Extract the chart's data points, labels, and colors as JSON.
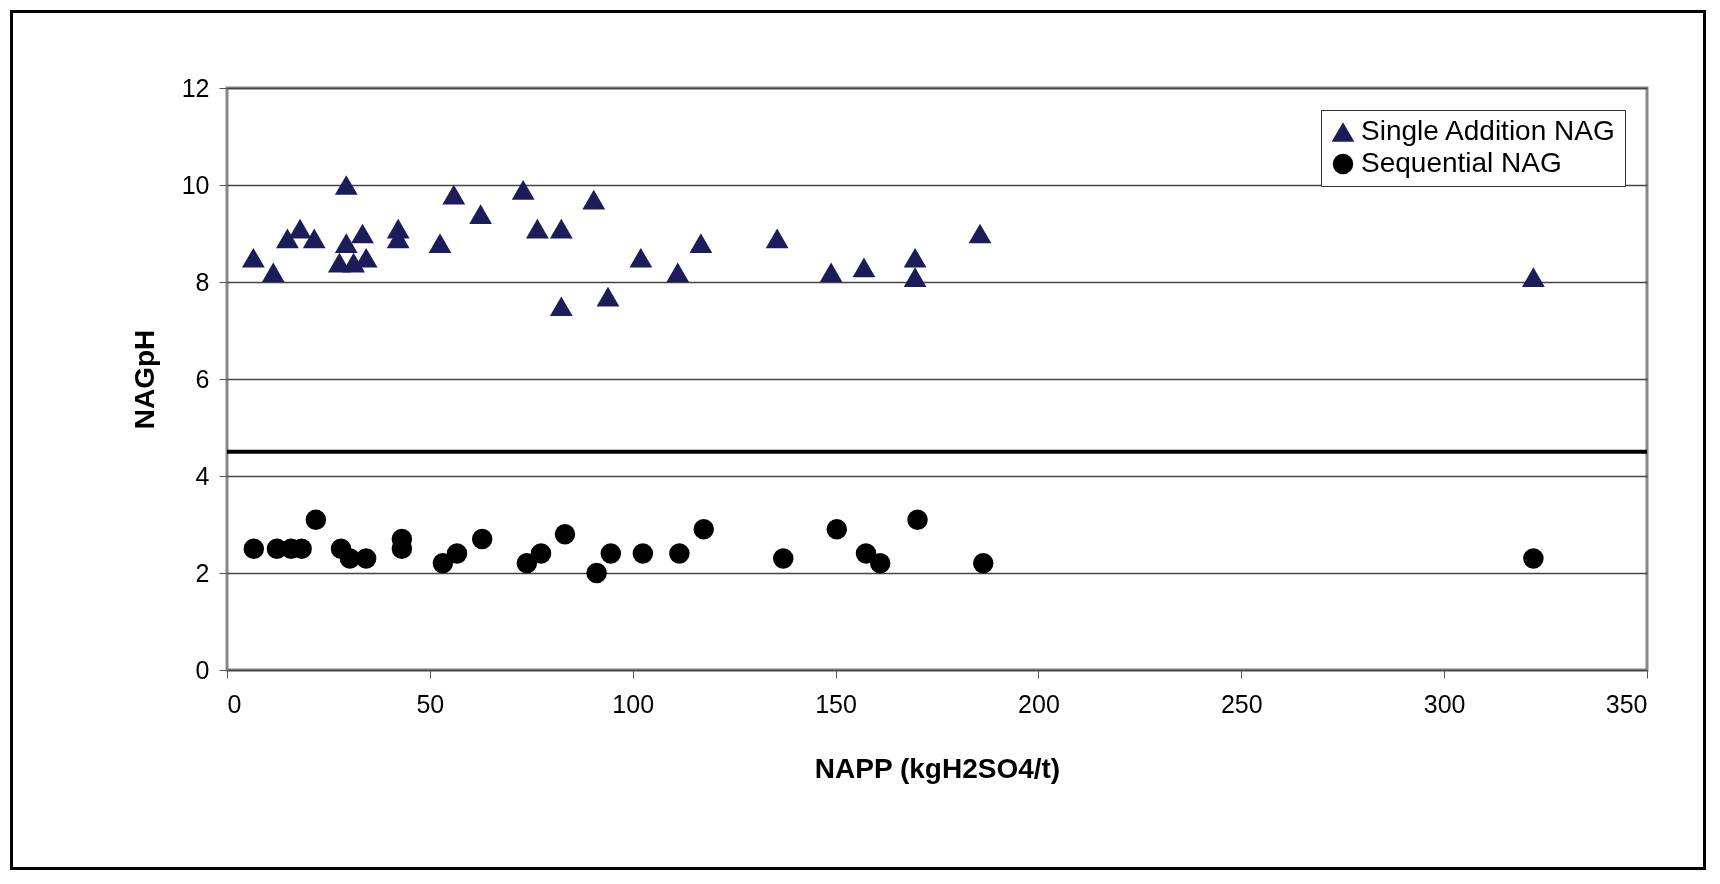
{
  "chart_data": {
    "type": "scatter",
    "xlabel": "NAPP (kgH2SO4/t)",
    "ylabel": "NAGpH",
    "xlim": [
      0,
      350
    ],
    "xticks": [
      0,
      50,
      100,
      150,
      200,
      250,
      300,
      350
    ],
    "ylim": [
      0,
      12
    ],
    "yticks": [
      0,
      2,
      4,
      6,
      8,
      10,
      12
    ],
    "grid": "y",
    "legend": "top right",
    "ref_lines": [
      {
        "axis": "y",
        "value": 4.5,
        "color": "#000000"
      }
    ],
    "series": [
      {
        "name": "Single Addition NAG",
        "color": "#1c1c5a",
        "marker": "triangle",
        "x": [
          6.5,
          11.4,
          14.9,
          18,
          21.5,
          27.7,
          29.4,
          29.4,
          31.2,
          33.4,
          34.3,
          42.2,
          42.2,
          52.5,
          55.9,
          62.5,
          73,
          76.5,
          82.4,
          82.4,
          90.4,
          93.9,
          102,
          111.1,
          116.8,
          135.6,
          148.9,
          157,
          169.6,
          169.6,
          185.6,
          322
        ],
        "values": [
          8.5,
          8.2,
          8.9,
          9.1,
          8.9,
          8.4,
          8.8,
          10,
          8.4,
          9,
          8.5,
          9.1,
          8.9,
          8.8,
          9.8,
          9.4,
          9.9,
          9.1,
          9.1,
          7.5,
          9.7,
          7.7,
          8.5,
          8.2,
          8.8,
          8.9,
          8.2,
          8.3,
          8.5,
          8.1,
          9,
          8.1
        ]
      },
      {
        "name": "Sequential NAG",
        "color": "#000000",
        "marker": "circle",
        "x": [
          6.6,
          12.3,
          15.8,
          18.4,
          21.9,
          28.1,
          30.3,
          34.3,
          43.1,
          43.1,
          53.2,
          56.7,
          62.9,
          73.9,
          77.4,
          83.3,
          91.1,
          94.6,
          102.5,
          111.5,
          117.5,
          137.1,
          150.3,
          157.5,
          161,
          170.2,
          186.4,
          322
        ],
        "values": [
          2.5,
          2.5,
          2.5,
          2.5,
          3.1,
          2.5,
          2.3,
          2.3,
          2.7,
          2.5,
          2.2,
          2.4,
          2.7,
          2.2,
          2.4,
          2.8,
          2,
          2.4,
          2.4,
          2.4,
          2.9,
          2.3,
          2.9,
          2.4,
          2.2,
          3.1,
          2.2,
          2.3
        ]
      }
    ]
  }
}
